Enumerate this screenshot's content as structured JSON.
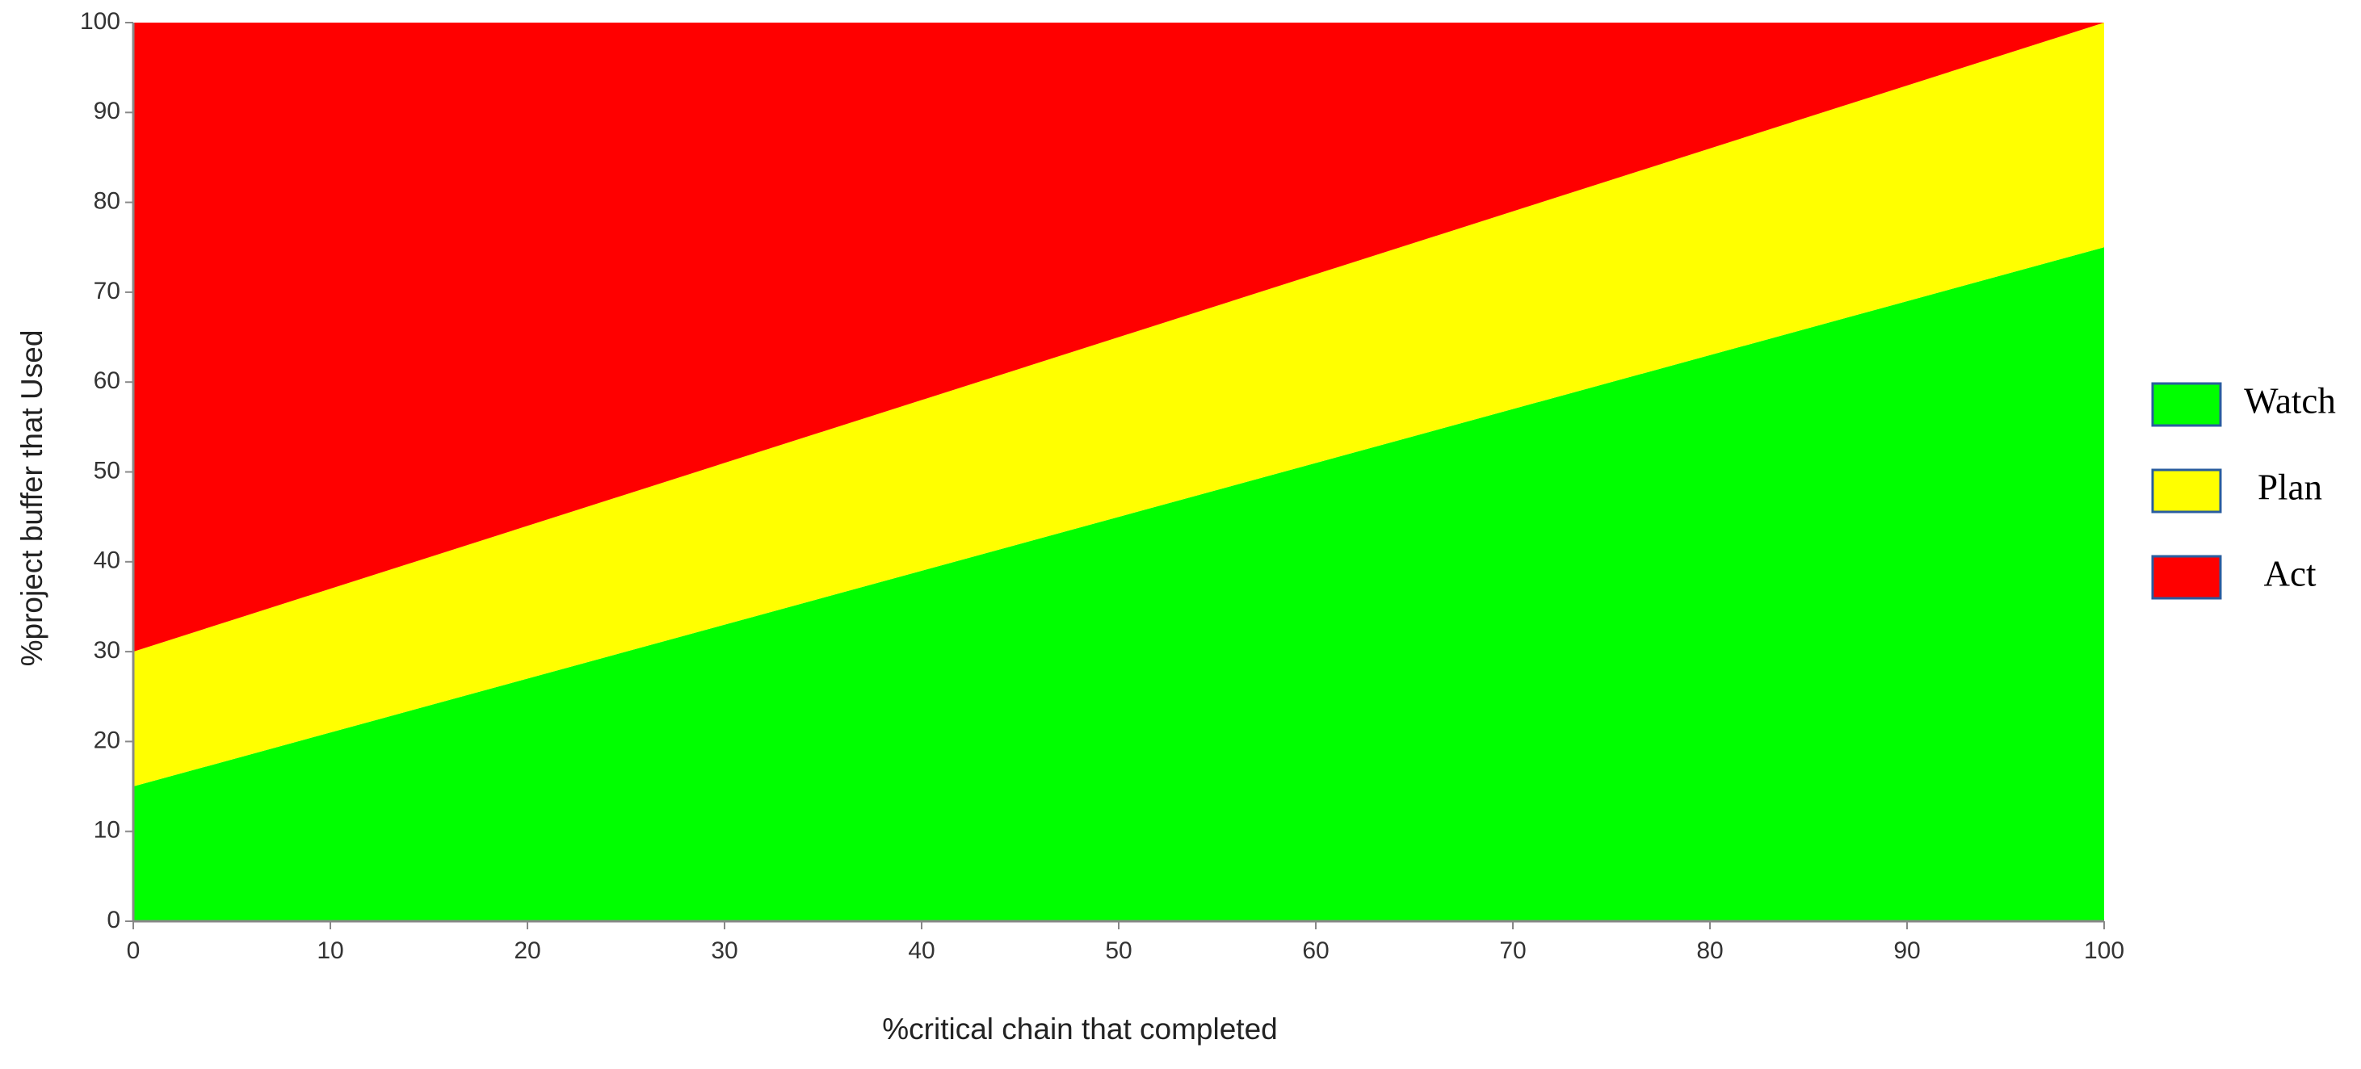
{
  "chart_data": {
    "type": "area",
    "stacked": true,
    "x_label": "%critical chain that completed",
    "y_label": "%project buffer that Used",
    "x": [
      0,
      100
    ],
    "series": [
      {
        "name": "Watch",
        "color": "#00ff00",
        "values": [
          15,
          75
        ]
      },
      {
        "name": "Plan",
        "color": "#ffff00",
        "values": [
          15,
          25
        ]
      },
      {
        "name": "Act",
        "color": "#ff0000",
        "values": [
          70,
          0
        ]
      }
    ],
    "xlim": [
      0,
      100
    ],
    "xticks": [
      0,
      10,
      20,
      30,
      40,
      50,
      60,
      70,
      80,
      90,
      100
    ],
    "ylim": [
      0,
      100
    ],
    "yticks": [
      0,
      10,
      20,
      30,
      40,
      50,
      60,
      70,
      80,
      90,
      100
    ],
    "legend": "right"
  }
}
